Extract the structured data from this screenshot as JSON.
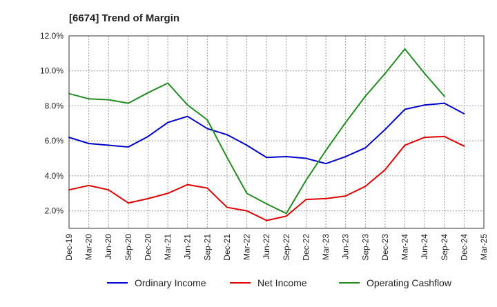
{
  "chart_data": {
    "type": "line",
    "title": "[6674]  Trend of Margin",
    "xlabel": "",
    "ylabel": "",
    "categories": [
      "Dec-19",
      "Mar-20",
      "Jun-20",
      "Sep-20",
      "Dec-20",
      "Mar-21",
      "Jun-21",
      "Sep-21",
      "Dec-21",
      "Mar-22",
      "Jun-22",
      "Sep-22",
      "Dec-22",
      "Mar-23",
      "Jun-23",
      "Sep-23",
      "Dec-23",
      "Mar-24",
      "Jun-24",
      "Sep-24",
      "Dec-24",
      "Mar-25"
    ],
    "y_ticks": [
      "2.0%",
      "4.0%",
      "6.0%",
      "8.0%",
      "10.0%",
      "12.0%"
    ],
    "ylim": [
      1.0,
      12.0
    ],
    "grid": true,
    "legend_position": "bottom",
    "series": [
      {
        "name": "Ordinary Income",
        "color": "#0000cc",
        "values": [
          6.2,
          5.85,
          5.75,
          5.65,
          6.25,
          7.05,
          7.4,
          6.7,
          6.35,
          5.75,
          5.05,
          5.1,
          5.0,
          4.7,
          5.1,
          5.6,
          6.65,
          7.8,
          8.05,
          8.15,
          7.55,
          null
        ]
      },
      {
        "name": "Net Income",
        "color": "#dd0000",
        "values": [
          3.2,
          3.45,
          3.2,
          2.45,
          2.7,
          3.0,
          3.5,
          3.3,
          2.2,
          2.0,
          1.45,
          1.7,
          2.65,
          2.7,
          2.85,
          3.4,
          4.35,
          5.75,
          6.2,
          6.25,
          5.7,
          null
        ]
      },
      {
        "name": "Operating Cashflow",
        "color": "#228b22",
        "values": [
          8.7,
          8.4,
          8.35,
          8.15,
          8.75,
          9.3,
          8.05,
          7.2,
          5.05,
          3.0,
          2.4,
          1.85,
          3.75,
          5.45,
          7.05,
          8.55,
          9.85,
          11.25,
          9.85,
          8.55,
          null,
          null
        ]
      }
    ]
  }
}
